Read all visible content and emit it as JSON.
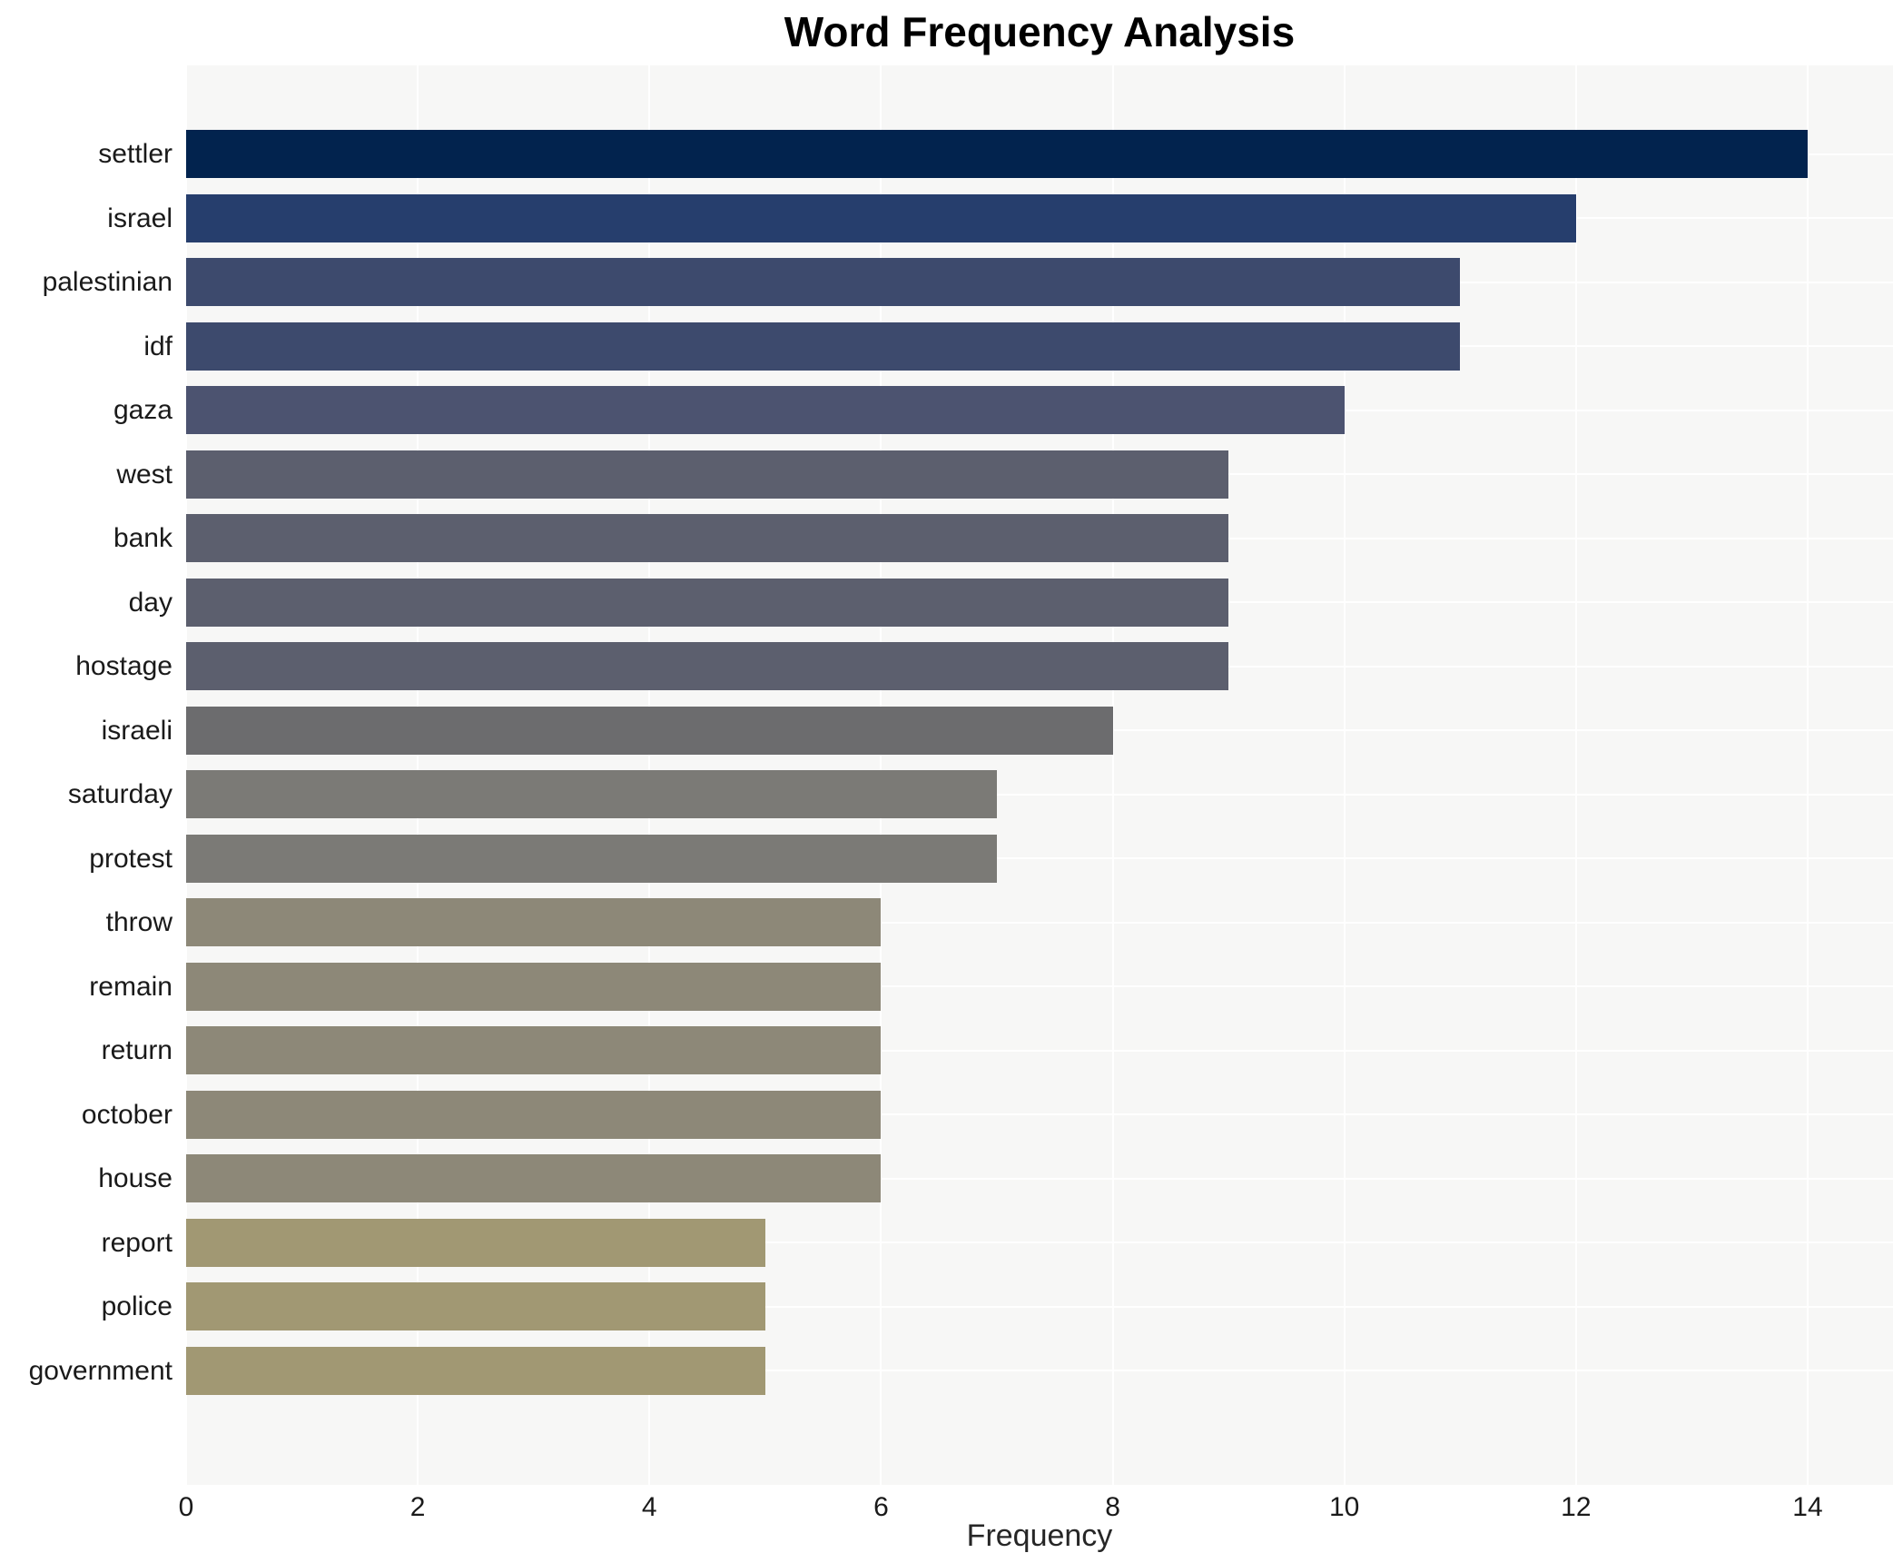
{
  "title": "Word Frequency Analysis",
  "colors": {
    "page_background": "#ffffff",
    "plot_background": "#f7f7f6",
    "grid": "#ffffff",
    "text": "#1a1a1a",
    "title_text": "#000000"
  },
  "chart_data": {
    "type": "bar",
    "orientation": "horizontal",
    "title": "Word Frequency Analysis",
    "xlabel": "Frequency",
    "ylabel": "",
    "categories": [
      "settler",
      "israel",
      "palestinian",
      "idf",
      "gaza",
      "west",
      "bank",
      "day",
      "hostage",
      "israeli",
      "saturday",
      "protest",
      "throw",
      "remain",
      "return",
      "october",
      "house",
      "report",
      "police",
      "government"
    ],
    "values": [
      14,
      12,
      11,
      11,
      10,
      9,
      9,
      9,
      9,
      8,
      7,
      7,
      6,
      6,
      6,
      6,
      6,
      5,
      5,
      5
    ],
    "bar_colors": [
      "#02234e",
      "#263e6d",
      "#3d4a6d",
      "#3d4a6d",
      "#4c5370",
      "#5c5f6e",
      "#5c5f6e",
      "#5c5f6e",
      "#5c5f6e",
      "#6c6c6e",
      "#7b7a76",
      "#7b7a76",
      "#8d8878",
      "#8d8878",
      "#8d8878",
      "#8d8878",
      "#8d8878",
      "#a19873",
      "#a19873",
      "#a19873"
    ],
    "xticks": [
      0,
      2,
      4,
      6,
      8,
      10,
      12,
      14
    ],
    "xlim": [
      0,
      14.74
    ],
    "grid": true,
    "legend": false
  }
}
